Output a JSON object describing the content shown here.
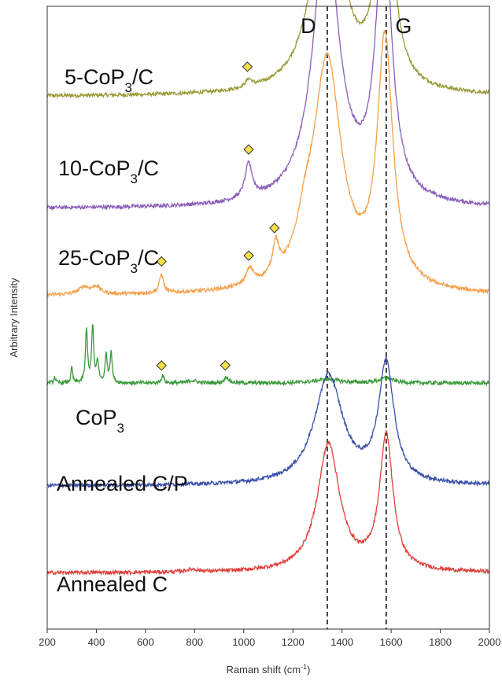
{
  "chart_data": {
    "type": "line",
    "xlabel": {
      "prefix": "Raman shift (cm",
      "sup": "-1",
      "suffix": ")"
    },
    "ylabel": "Arbitrary Intensity",
    "xlim": [
      200,
      2000
    ],
    "x_ticks": [
      200,
      400,
      600,
      800,
      1000,
      1200,
      1400,
      1600,
      1800,
      2000
    ],
    "reference_lines": [
      {
        "label": "D",
        "x": 1340
      },
      {
        "label": "G",
        "x": 1580
      }
    ],
    "series": [
      {
        "name": "5-CoP3/C",
        "label_parts": [
          "5-CoP",
          "3",
          "/C"
        ],
        "color": "#9b9b3a",
        "baseline": 0.855,
        "peaks": [
          {
            "x": 1340,
            "height": 0.345,
            "width": 70
          },
          {
            "x": 1575,
            "height": 0.365,
            "width": 38
          },
          {
            "x": 1020,
            "height": 0.012,
            "width": 15
          }
        ],
        "markers": [
          1015
        ]
      },
      {
        "name": "10-CoP3/C",
        "label_parts": [
          "10-CoP",
          "3",
          "/C"
        ],
        "color": "#8b5fb8",
        "baseline": 0.675,
        "peaks": [
          {
            "x": 1335,
            "height": 0.435,
            "width": 65
          },
          {
            "x": 1570,
            "height": 0.44,
            "width": 38
          },
          {
            "x": 1020,
            "height": 0.055,
            "width": 18
          }
        ],
        "markers": [
          1020
        ]
      },
      {
        "name": "25-CoP3/C",
        "label_parts": [
          "25-CoP",
          "3",
          "/C"
        ],
        "color": "#f5a04a",
        "baseline": 0.535,
        "peaks": [
          {
            "x": 1340,
            "height": 0.37,
            "width": 70
          },
          {
            "x": 1575,
            "height": 0.395,
            "width": 38
          },
          {
            "x": 665,
            "height": 0.03,
            "width": 10
          },
          {
            "x": 1025,
            "height": 0.025,
            "width": 18
          },
          {
            "x": 1130,
            "height": 0.05,
            "width": 15
          },
          {
            "x": 1250,
            "height": 0.05,
            "width": 40
          },
          {
            "x": 350,
            "height": 0.012,
            "width": 25
          },
          {
            "x": 400,
            "height": 0.012,
            "width": 20
          }
        ],
        "markers": [
          665,
          1020,
          1125
        ]
      },
      {
        "name": "CoP3",
        "label_parts": [
          "CoP",
          "3",
          ""
        ],
        "color": "#3a9a3a",
        "baseline": 0.395,
        "peaks": [
          {
            "x": 360,
            "height": 0.085,
            "width": 5
          },
          {
            "x": 385,
            "height": 0.09,
            "width": 5
          },
          {
            "x": 405,
            "height": 0.035,
            "width": 5
          },
          {
            "x": 440,
            "height": 0.045,
            "width": 5
          },
          {
            "x": 460,
            "height": 0.05,
            "width": 5
          },
          {
            "x": 300,
            "height": 0.025,
            "width": 4
          },
          {
            "x": 230,
            "height": 0.01,
            "width": 4
          },
          {
            "x": 670,
            "height": 0.013,
            "width": 6
          },
          {
            "x": 930,
            "height": 0.01,
            "width": 10
          },
          {
            "x": 790,
            "height": 0.004,
            "width": 20
          },
          {
            "x": 1340,
            "height": 0.006,
            "width": 60
          },
          {
            "x": 1580,
            "height": 0.008,
            "width": 35
          }
        ],
        "markers": [
          665,
          925
        ]
      },
      {
        "name": "Annealed C/P",
        "label_parts": [
          "Annealed C/P",
          "",
          ""
        ],
        "color": "#3a4fa8",
        "baseline": 0.23,
        "peaks": [
          {
            "x": 1345,
            "height": 0.175,
            "width": 70
          },
          {
            "x": 1580,
            "height": 0.19,
            "width": 38
          }
        ],
        "markers": []
      },
      {
        "name": "Annealed C",
        "label_parts": [
          "Annealed C",
          "",
          ""
        ],
        "color": "#e0403a",
        "baseline": 0.09,
        "peaks": [
          {
            "x": 1345,
            "height": 0.205,
            "width": 55
          },
          {
            "x": 1580,
            "height": 0.215,
            "width": 33
          },
          {
            "x": 790,
            "height": 0.004,
            "width": 30
          }
        ],
        "markers": []
      }
    ]
  }
}
